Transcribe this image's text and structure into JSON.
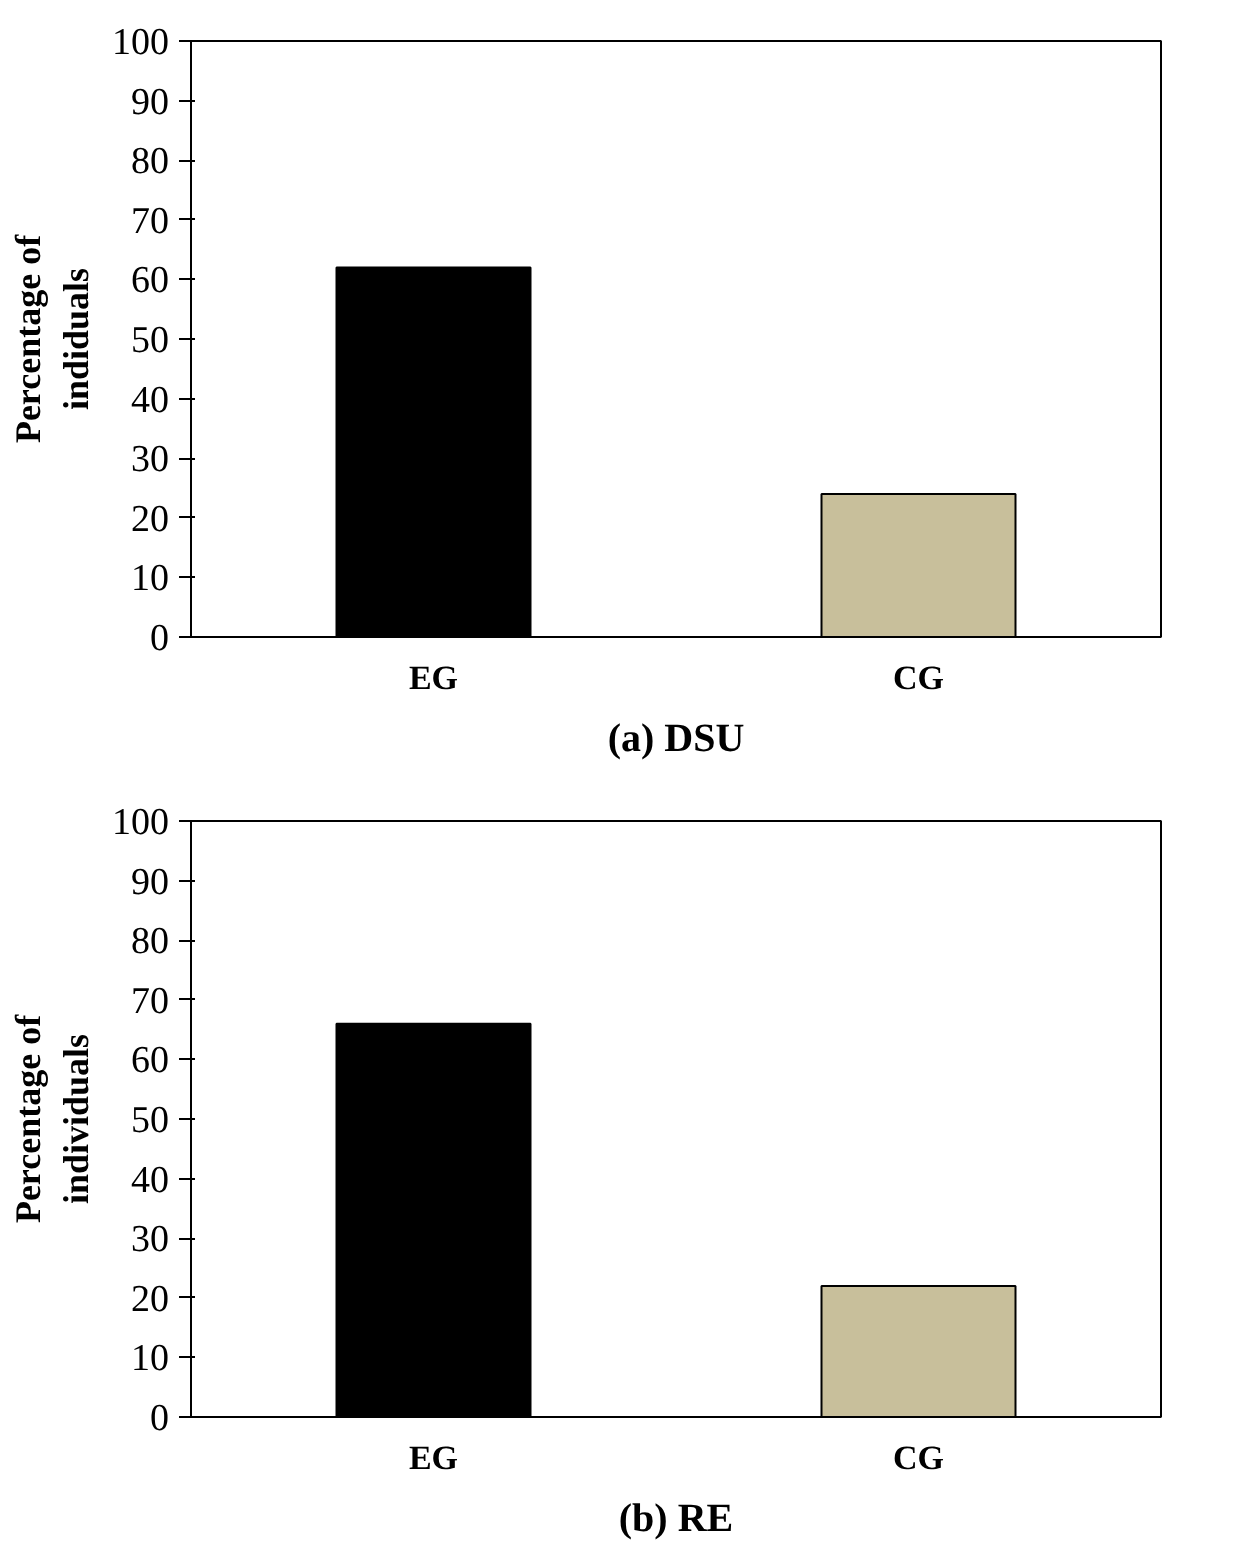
{
  "chart_data": [
    {
      "type": "bar",
      "title": "(a) DSU",
      "ylabel": "Percentage of\nindiduals",
      "categories": [
        "EG",
        "CG"
      ],
      "values": [
        62,
        24
      ],
      "colors": [
        "#000000",
        "#c8bf9b"
      ],
      "ylim": [
        0,
        100
      ],
      "yticks": [
        0,
        10,
        20,
        30,
        40,
        50,
        60,
        70,
        80,
        90,
        100
      ],
      "grid": false
    },
    {
      "type": "bar",
      "title": "(b) RE",
      "ylabel": "Percentage of\nindividuals",
      "categories": [
        "EG",
        "CG"
      ],
      "values": [
        66,
        22
      ],
      "colors": [
        "#000000",
        "#c8bf9b"
      ],
      "ylim": [
        0,
        100
      ],
      "yticks": [
        0,
        10,
        20,
        30,
        40,
        50,
        60,
        70,
        80,
        90,
        100
      ],
      "grid": false
    }
  ]
}
